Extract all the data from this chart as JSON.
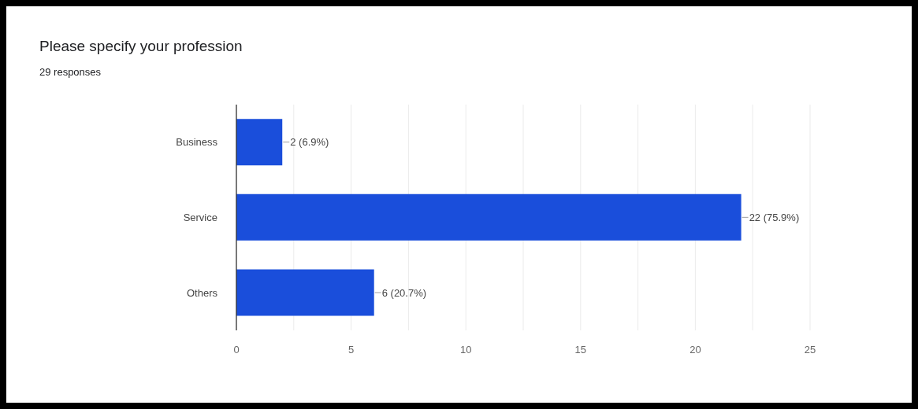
{
  "chart_data": {
    "type": "bar",
    "orientation": "horizontal",
    "title": "Please specify your profession",
    "subtitle": "29 responses",
    "categories": [
      "Business",
      "Service",
      "Others"
    ],
    "values": [
      2,
      22,
      6
    ],
    "color": "#1a4edb",
    "value_labels": [
      "2 (6.9%)",
      "22 (75.9%)",
      "6 (20.7%)"
    ],
    "xlim": [
      0,
      25
    ],
    "xticks": [
      0,
      {
        "value": 2.5,
        "label": null
      },
      5,
      {
        "value": 7.5,
        "label": null
      },
      10,
      {
        "value": 12.5,
        "label": null
      },
      15,
      {
        "value": 17.5,
        "label": null
      },
      20,
      {
        "value": 22.5,
        "label": null
      },
      25
    ],
    "grid": "x"
  }
}
